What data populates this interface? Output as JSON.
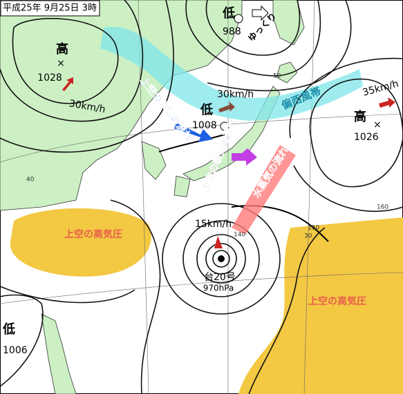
{
  "header": {
    "title": "平成25年 9月25日 3時"
  },
  "systems": [
    {
      "symbol": "低",
      "pressure": 988,
      "note": "ゆっくり"
    },
    {
      "symbol": "高",
      "center": "×",
      "pressure": 1028,
      "speed": "30km/h"
    },
    {
      "symbol": "低",
      "pressure": 1008,
      "speed": "30km/h"
    },
    {
      "symbol": "高",
      "center": "×",
      "pressure": 1026,
      "speed": "35km/h"
    },
    {
      "symbol": "低",
      "pressure": 1006
    }
  ],
  "typhoon": {
    "name": "台20号",
    "pressure": "970hPa",
    "speed": "15km/h"
  },
  "flows": {
    "cold_air": "上空の寒気の流れ",
    "warm_air": "上空の暖気の流れ",
    "vapor": "水蒸気の流れ",
    "westerlies": "偏西風帯"
  },
  "highs_aloft": [
    "上空の高気圧",
    "上空の高気圧"
  ],
  "grid_labels": [
    "30",
    "40",
    "50",
    "140",
    "150",
    "160"
  ]
}
